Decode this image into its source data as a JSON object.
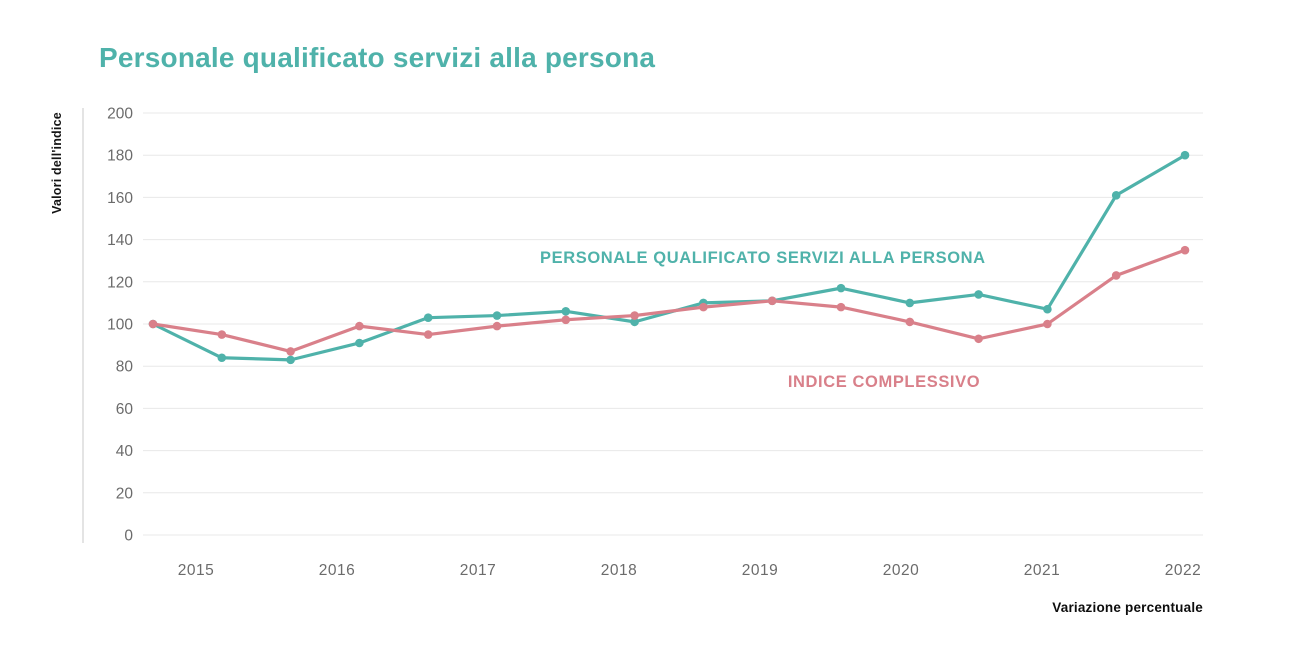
{
  "title": "Personale qualificato servizi alla persona",
  "colors": {
    "teal": "#4FB2AA",
    "pink": "#D9808A",
    "grid": "#e8e8e8",
    "axis_line": "#d6d6d6",
    "tick_text": "#6b6b6b",
    "body_text": "#111111"
  },
  "chart_data": {
    "type": "line",
    "title": "Personale qualificato servizi alla persona",
    "ylabel": "Valori dell'indice",
    "xlabel": "Variazione percentuale",
    "ylim": [
      0,
      200
    ],
    "yticks": [
      0,
      20,
      40,
      60,
      80,
      100,
      120,
      140,
      160,
      180,
      200
    ],
    "grid": true,
    "legend_position": "inline-annotations",
    "x_year_labels": [
      "2015",
      "2016",
      "2017",
      "2018",
      "2019",
      "2020",
      "2021",
      "2022"
    ],
    "x": [
      2015.0,
      2015.5,
      2016.0,
      2016.5,
      2017.0,
      2017.5,
      2018.0,
      2018.5,
      2019.0,
      2019.5,
      2020.0,
      2020.5,
      2021.0,
      2021.5,
      2022.0,
      2022.5
    ],
    "series": [
      {
        "name": "PERSONALE QUALIFICATO SERVIZI ALLA PERSONA",
        "color": "#4FB2AA",
        "values": [
          100,
          84,
          83,
          91,
          103,
          104,
          106,
          101,
          110,
          111,
          117,
          110,
          114,
          107,
          161,
          180
        ]
      },
      {
        "name": "INDICE COMPLESSIVO",
        "color": "#D9808A",
        "values": [
          100,
          95,
          87,
          99,
          95,
          99,
          102,
          104,
          108,
          111,
          108,
          101,
          93,
          100,
          123,
          135
        ]
      }
    ],
    "annotations": [
      {
        "text": "PERSONALE QUALIFICATO SERVIZI ALLA PERSONA",
        "series": 0
      },
      {
        "text": "INDICE COMPLESSIVO",
        "series": 1
      }
    ]
  }
}
